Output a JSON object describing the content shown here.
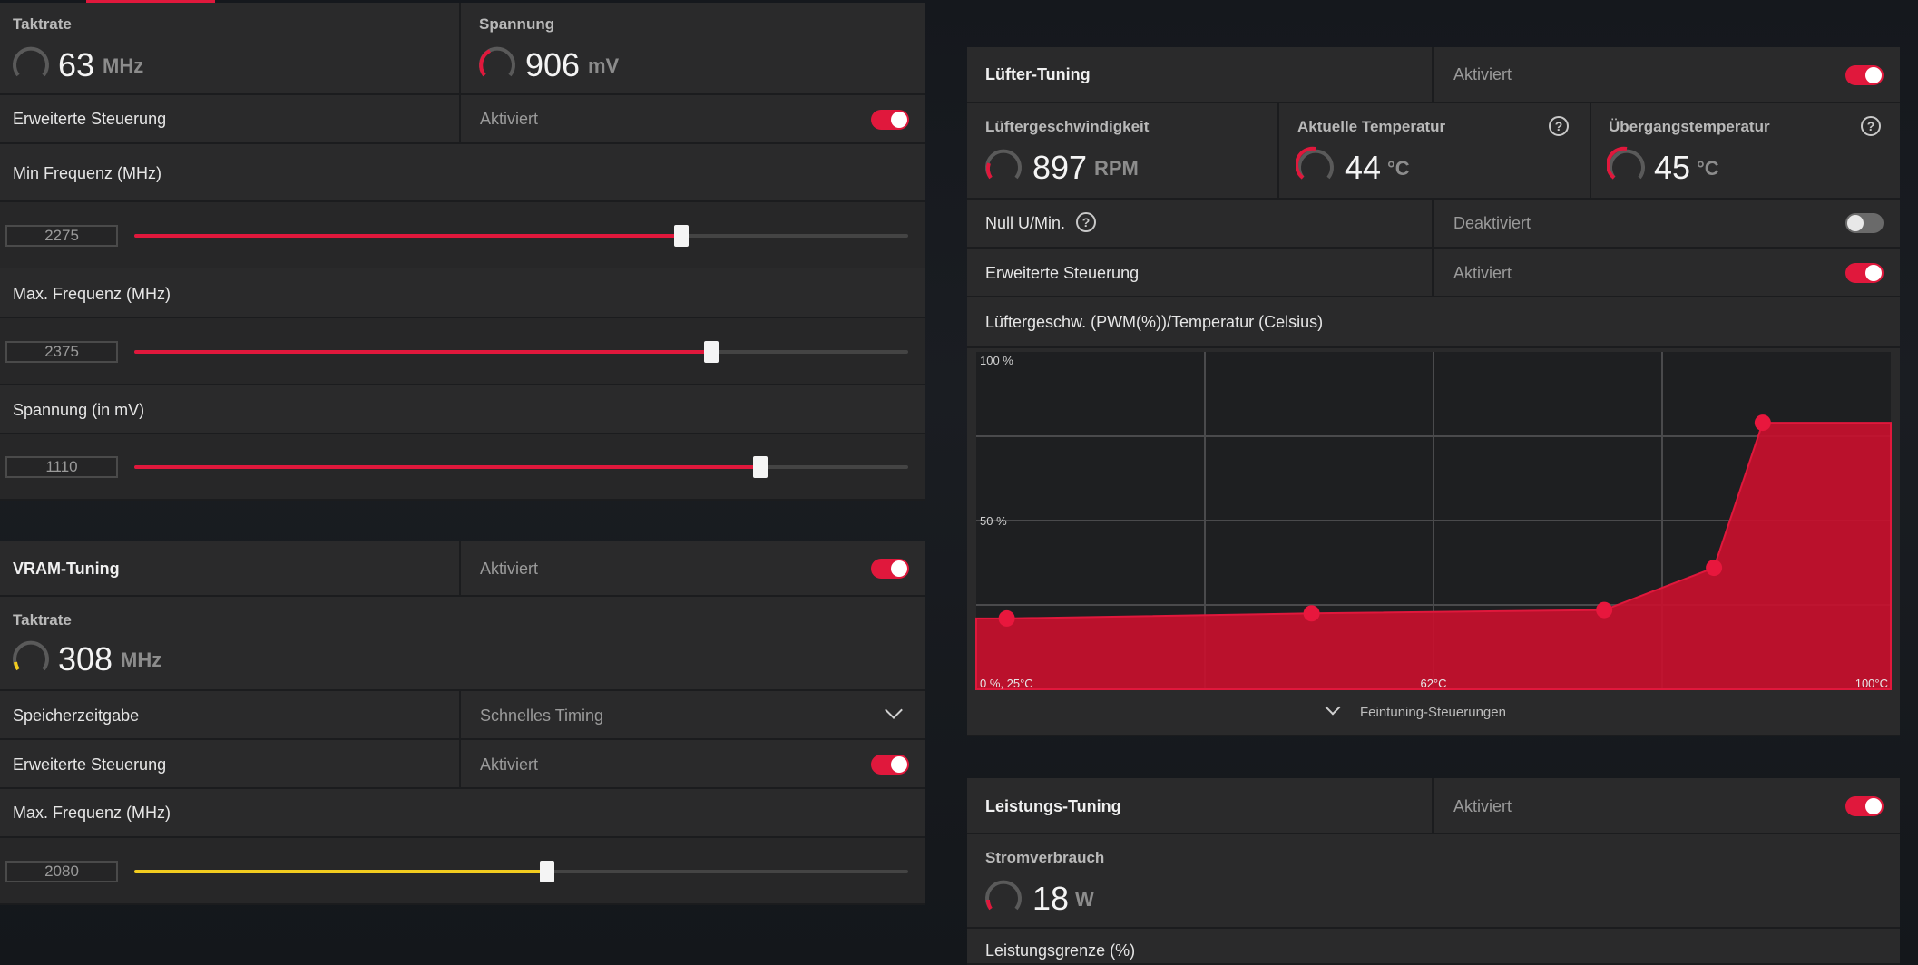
{
  "colors": {
    "accent": "#e0183c",
    "vram_accent": "#f2cc1f",
    "panel": "#2a2a2b",
    "background": "#15181d"
  },
  "gpu": {
    "clock": {
      "title": "Taktrate",
      "value": "63",
      "unit": "MHz"
    },
    "voltage": {
      "title": "Spannung",
      "value": "906",
      "unit": "mV"
    },
    "advanced": {
      "label": "Erweiterte Steuerung",
      "status": "Aktiviert",
      "on": true
    },
    "min_freq": {
      "label": "Min Frequenz (MHz)",
      "value": "2275",
      "fraction": 0.705
    },
    "max_freq": {
      "label": "Max. Frequenz (MHz)",
      "value": "2375",
      "fraction": 0.745
    },
    "voltage_slider": {
      "label": "Spannung (in mV)",
      "value": "1110",
      "fraction": 0.81
    }
  },
  "vram": {
    "title": "VRAM-Tuning",
    "status": "Aktiviert",
    "on": true,
    "clock": {
      "title": "Taktrate",
      "value": "308",
      "unit": "MHz"
    },
    "timing": {
      "label": "Speicherzeitgabe",
      "value": "Schnelles Timing"
    },
    "advanced": {
      "label": "Erweiterte Steuerung",
      "status": "Aktiviert",
      "on": true
    },
    "max_freq": {
      "label": "Max. Frequenz (MHz)",
      "value": "2080",
      "fraction": 0.535
    }
  },
  "fan": {
    "title": "Lüfter-Tuning",
    "status": "Aktiviert",
    "on": true,
    "speed": {
      "title": "Lüftergeschwindigkeit",
      "value": "897",
      "unit": "RPM"
    },
    "current_temp": {
      "title": "Aktuelle Temperatur",
      "value": "44",
      "unit": "°C"
    },
    "junction_temp": {
      "title": "Übergangstemperatur",
      "value": "45",
      "unit": "°C"
    },
    "zero_rpm": {
      "label": "Null U/Min.",
      "status": "Deaktiviert",
      "on": false
    },
    "advanced": {
      "label": "Erweiterte Steuerung",
      "status": "Aktiviert",
      "on": true
    },
    "curve_title": "Lüftergeschw. (PWM(%))/Temperatur (Celsius)",
    "fine_tuning": "Feintuning-Steuerungen"
  },
  "power": {
    "title": "Leistungs-Tuning",
    "status": "Aktiviert",
    "on": true,
    "consumption": {
      "title": "Stromverbrauch",
      "value": "18",
      "unit": "W"
    },
    "limit_label": "Leistungsgrenze (%)"
  },
  "chart_data": {
    "type": "area",
    "title": "",
    "y_tick_labels": [
      "100 %",
      "50 %"
    ],
    "x_tick_labels": [
      "0 %, 25°C",
      "62°C",
      "100°C"
    ],
    "xlim": [
      25,
      100
    ],
    "ylim": [
      0,
      100
    ],
    "grid": true,
    "series": [
      {
        "x": [
          27.5,
          52.5,
          76.5,
          85.5,
          89.5,
          100
        ],
        "y": [
          21,
          22.5,
          23.5,
          36,
          79,
          79
        ]
      }
    ],
    "points": [
      {
        "x": 27.5,
        "y": 21
      },
      {
        "x": 52.5,
        "y": 22.5
      },
      {
        "x": 76.5,
        "y": 23.5
      },
      {
        "x": 85.5,
        "y": 36
      },
      {
        "x": 89.5,
        "y": 79
      }
    ]
  }
}
